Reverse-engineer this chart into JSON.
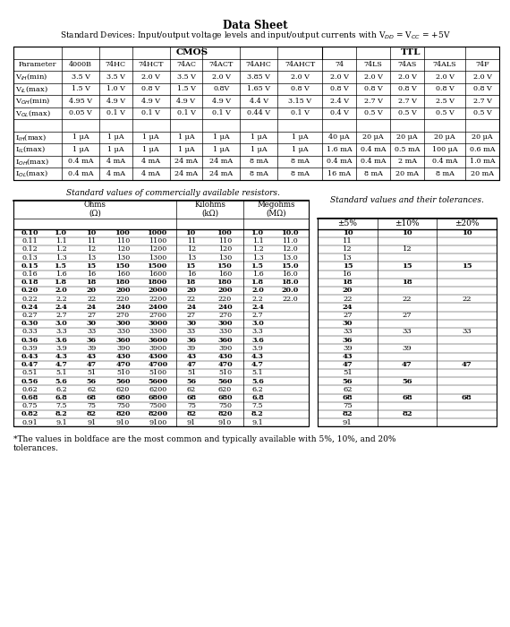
{
  "title": "Data Sheet",
  "table1_headers_row2": [
    "Parameter",
    "4000B",
    "74HC",
    "74HCT",
    "74AC",
    "74ACT",
    "74AHC",
    "74AHCT",
    "74",
    "74LS",
    "74AS",
    "74ALS",
    "74F"
  ],
  "table1_data": [
    [
      "V_IH(min)",
      "3.5 V",
      "3.5 V",
      "2.0 V",
      "3.5 V",
      "2.0 V",
      "3.85 V",
      "2.0 V",
      "2.0 V",
      "2.0 V",
      "2.0 V",
      "2.0 V",
      "2.0 V"
    ],
    [
      "V_IL(max)",
      "1.5 V",
      "1.0 V",
      "0.8 V",
      "1.5 V",
      "0.8V",
      "1.65 V",
      "0.8 V",
      "0.8 V",
      "0.8 V",
      "0.8 V",
      "0.8 V",
      "0.8 V"
    ],
    [
      "V_OH(min)",
      "4.95 V",
      "4.9 V",
      "4.9 V",
      "4.9 V",
      "4.9 V",
      "4.4 V",
      "3.15 V",
      "2.4 V",
      "2.7 V",
      "2.7 V",
      "2.5 V",
      "2.7 V"
    ],
    [
      "V_OL(max)",
      "0.05 V",
      "0.1 V",
      "0.1 V",
      "0.1 V",
      "0.1 V",
      "0.44 V",
      "0.1 V",
      "0.4 V",
      "0.5 V",
      "0.5 V",
      "0.5 V",
      "0.5 V"
    ],
    [
      "",
      "",
      "",
      "",
      "",
      "",
      "",
      "",
      "",
      "",
      "",
      "",
      ""
    ],
    [
      "I_IH(max)",
      "1 μA",
      "1 μA",
      "1 μA",
      "1 μA",
      "1 μA",
      "1 μA",
      "1 μA",
      "40 μA",
      "20 μA",
      "20 μA",
      "20 μA",
      "20 μA"
    ],
    [
      "I_IL(max)",
      "1 μA",
      "1 μA",
      "1 μA",
      "1 μA",
      "1 μA",
      "1 μA",
      "1 μA",
      "1.6 mA",
      "0.4 mA",
      "0.5 mA",
      "100 μA",
      "0.6 mA"
    ],
    [
      "I_OH(max)",
      "0.4 mA",
      "4 mA",
      "4 mA",
      "24 mA",
      "24 mA",
      "8 mA",
      "8 mA",
      "0.4 mA",
      "0.4 mA",
      "2 mA",
      "0.4 mA",
      "1.0 mA"
    ],
    [
      "I_OL(max)",
      "0.4 mA",
      "4 mA",
      "4 mA",
      "24 mA",
      "24 mA",
      "8 mA",
      "8 mA",
      "16 mA",
      "8 mA",
      "20 mA",
      "8 mA",
      "20 mA"
    ]
  ],
  "param_labels_tex": [
    "V$_{IH}$(min)",
    "V$_{IL}$(max)",
    "V$_{OH}$(min)",
    "V$_{OL}$(max)",
    "",
    "I$_{IH}$(max)",
    "I$_{IL}$(max)",
    "I$_{OH}$(max)",
    "I$_{OL}$(max)"
  ],
  "table2_data": [
    [
      "0.10",
      "1.0",
      "10",
      "100",
      "1000",
      "10",
      "100",
      "1.0",
      "10.0"
    ],
    [
      "0.11",
      "1.1",
      "11",
      "110",
      "1100",
      "11",
      "110",
      "1.1",
      "11.0"
    ],
    [
      "0.12",
      "1.2",
      "12",
      "120",
      "1200",
      "12",
      "120",
      "1.2",
      "12.0"
    ],
    [
      "0.13",
      "1.3",
      "13",
      "130",
      "1300",
      "13",
      "130",
      "1.3",
      "13.0"
    ],
    [
      "0.15",
      "1.5",
      "15",
      "150",
      "1500",
      "15",
      "150",
      "1.5",
      "15.0"
    ],
    [
      "0.16",
      "1.6",
      "16",
      "160",
      "1600",
      "16",
      "160",
      "1.6",
      "16.0"
    ],
    [
      "0.18",
      "1.8",
      "18",
      "180",
      "1800",
      "18",
      "180",
      "1.8",
      "18.0"
    ],
    [
      "0.20",
      "2.0",
      "20",
      "200",
      "2000",
      "20",
      "200",
      "2.0",
      "20.0"
    ],
    [
      "0.22",
      "2.2",
      "22",
      "220",
      "2200",
      "22",
      "220",
      "2.2",
      "22.0"
    ],
    [
      "0.24",
      "2.4",
      "24",
      "240",
      "2400",
      "24",
      "240",
      "2.4",
      ""
    ],
    [
      "0.27",
      "2.7",
      "27",
      "270",
      "2700",
      "27",
      "270",
      "2.7",
      ""
    ],
    [
      "0.30",
      "3.0",
      "30",
      "300",
      "3000",
      "30",
      "300",
      "3.0",
      ""
    ],
    [
      "0.33",
      "3.3",
      "33",
      "330",
      "3300",
      "33",
      "330",
      "3.3",
      ""
    ],
    [
      "0.36",
      "3.6",
      "36",
      "360",
      "3600",
      "36",
      "360",
      "3.6",
      ""
    ],
    [
      "0.39",
      "3.9",
      "39",
      "390",
      "3900",
      "39",
      "390",
      "3.9",
      ""
    ],
    [
      "0.43",
      "4.3",
      "43",
      "430",
      "4300",
      "43",
      "430",
      "4.3",
      ""
    ],
    [
      "0.47",
      "4.7",
      "47",
      "470",
      "4700",
      "47",
      "470",
      "4.7",
      ""
    ],
    [
      "0.51",
      "5.1",
      "51",
      "510",
      "5100",
      "51",
      "510",
      "5.1",
      ""
    ],
    [
      "0.56",
      "5.6",
      "56",
      "560",
      "5600",
      "56",
      "560",
      "5.6",
      ""
    ],
    [
      "0.62",
      "6.2",
      "62",
      "620",
      "6200",
      "62",
      "620",
      "6.2",
      ""
    ],
    [
      "0.68",
      "6.8",
      "68",
      "680",
      "6800",
      "68",
      "680",
      "6.8",
      ""
    ],
    [
      "0.75",
      "7.5",
      "75",
      "750",
      "7500",
      "75",
      "750",
      "7.5",
      ""
    ],
    [
      "0.82",
      "8.2",
      "82",
      "820",
      "8200",
      "82",
      "820",
      "8.2",
      ""
    ],
    [
      "0.91",
      "9.1",
      "91",
      "910",
      "9100",
      "91",
      "910",
      "9.1",
      ""
    ]
  ],
  "bold_rows_table2": [
    0,
    4,
    6,
    7,
    9,
    11,
    13,
    15,
    16,
    18,
    20,
    22
  ],
  "table3_headers": [
    "±5%",
    "±10%",
    "±20%"
  ],
  "table3_data": [
    [
      "10",
      "10",
      "10"
    ],
    [
      "11",
      "",
      ""
    ],
    [
      "12",
      "12",
      ""
    ],
    [
      "13",
      "",
      ""
    ],
    [
      "15",
      "15",
      "15"
    ],
    [
      "16",
      "",
      ""
    ],
    [
      "18",
      "18",
      ""
    ],
    [
      "20",
      "",
      ""
    ],
    [
      "22",
      "22",
      "22"
    ],
    [
      "24",
      "",
      ""
    ],
    [
      "27",
      "27",
      ""
    ],
    [
      "30",
      "",
      ""
    ],
    [
      "33",
      "33",
      "33"
    ],
    [
      "36",
      "",
      ""
    ],
    [
      "39",
      "39",
      ""
    ],
    [
      "43",
      "",
      ""
    ],
    [
      "47",
      "47",
      "47"
    ],
    [
      "51",
      "",
      ""
    ],
    [
      "56",
      "56",
      ""
    ],
    [
      "62",
      "",
      ""
    ],
    [
      "68",
      "68",
      "68"
    ],
    [
      "75",
      "",
      ""
    ],
    [
      "82",
      "82",
      ""
    ],
    [
      "91",
      "",
      ""
    ]
  ],
  "bold_rows_table3": [
    0,
    4,
    6,
    7,
    9,
    11,
    13,
    15,
    16,
    18,
    20,
    22
  ],
  "footnote_line1": "*The values in boldface are the most common and typically available with 5%, 10%, and 20%",
  "footnote_line2": "tolerances."
}
